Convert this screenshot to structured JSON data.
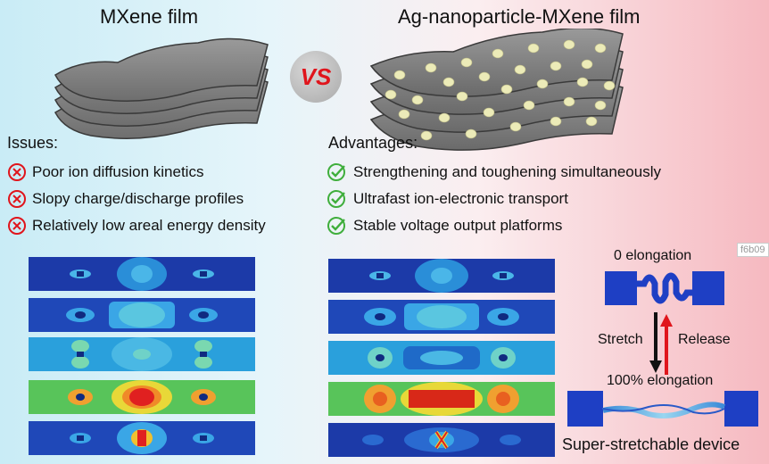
{
  "left": {
    "title": "MXene film",
    "header": "Issues:",
    "items": [
      {
        "text": "Poor ion diffusion kinetics",
        "icon": "cross-circle-icon"
      },
      {
        "text": "Slopy charge/discharge profiles",
        "icon": "cross-circle-icon"
      },
      {
        "text": "Relatively low areal energy density",
        "icon": "cross-circle-icon"
      }
    ]
  },
  "vs_label": "VS",
  "right": {
    "title": "Ag-nanoparticle-MXene film",
    "header": "Advantages:",
    "items": [
      {
        "text": "Strengthening and toughening simultaneously",
        "icon": "check-circle-icon"
      },
      {
        "text": "Ultrafast ion-electronic transport",
        "icon": "check-circle-icon"
      },
      {
        "text": "Stable voltage output platforms",
        "icon": "check-circle-icon"
      }
    ]
  },
  "device": {
    "top_label": "0 elongation",
    "stretch_label": "Stretch",
    "release_label": "Release",
    "bottom_label": "100% elongation",
    "caption": "Super-stretchable device"
  },
  "corner_tag": "f6b09",
  "colors": {
    "cross": "#e0151c",
    "check": "#3fae3c",
    "device_blue": "#1e3fc4",
    "arrow_black": "#111111",
    "arrow_red": "#e0151c"
  }
}
